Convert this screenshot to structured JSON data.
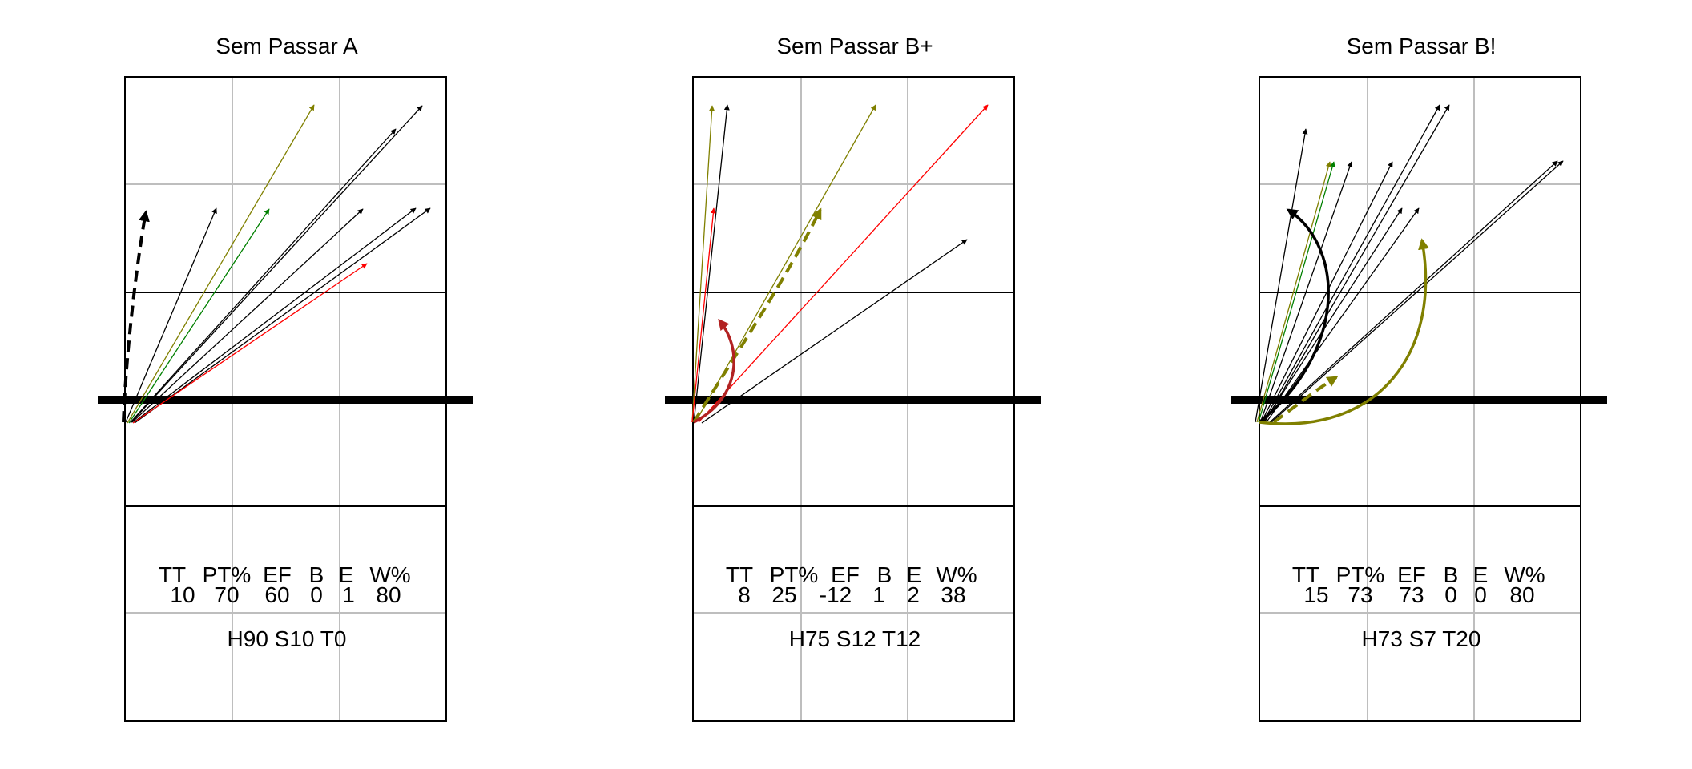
{
  "panels": [
    {
      "title": "Sem Passar A",
      "stats_header": [
        "TT",
        "PT%",
        "EF",
        "B",
        "E",
        "W%"
      ],
      "stats_values": [
        "10",
        "70",
        "60",
        "0",
        "1",
        "80"
      ],
      "footer": "H90 S10 T0"
    },
    {
      "title": "Sem Passar B+",
      "stats_header": [
        "TT",
        "PT%",
        "EF",
        "B",
        "E",
        "W%"
      ],
      "stats_values": [
        "8",
        "25",
        "-12",
        "1",
        "2",
        "38"
      ],
      "footer": "H75 S12 T12"
    },
    {
      "title": "Sem Passar B!",
      "stats_header": [
        "TT",
        "PT%",
        "EF",
        "B",
        "E",
        "W%"
      ],
      "stats_values": [
        "15",
        "73",
        "73",
        "0",
        "0",
        "80"
      ],
      "footer": "H73 S7 T20"
    }
  ],
  "colors": {
    "court_line": "#000000",
    "grid": "#bebebe",
    "black": "#000000",
    "olive": "#808000",
    "green": "#008000",
    "red": "#ff0000",
    "dark_red": "#b22222"
  }
}
